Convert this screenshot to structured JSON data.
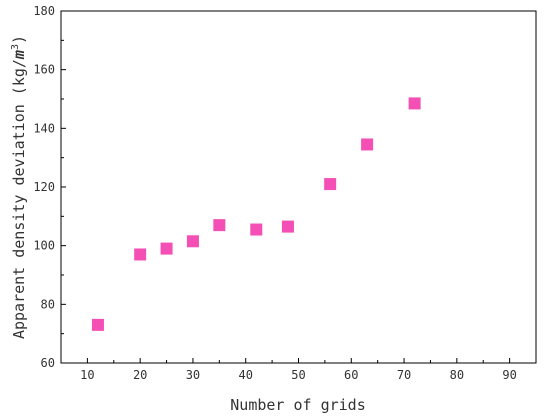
{
  "chart_data": {
    "type": "scatter",
    "title": "",
    "xlabel": "Number of grids",
    "ylabel_prefix": "Apparent density deviation (kg/",
    "ylabel_unit": "m",
    "ylabel_exp": "3",
    "ylabel_suffix": ")",
    "xlim": [
      5,
      95
    ],
    "ylim": [
      60,
      180
    ],
    "xticks": [
      10,
      20,
      30,
      40,
      50,
      60,
      70,
      80,
      90
    ],
    "yticks": [
      60,
      80,
      100,
      120,
      140,
      160,
      180
    ],
    "grid": false,
    "marker": "square",
    "marker_color": "#f44fb4",
    "series": [
      {
        "x": [
          12,
          20,
          25,
          30,
          35,
          42,
          48,
          56,
          63,
          72
        ],
        "y": [
          73,
          97,
          99,
          101.5,
          107,
          105.5,
          106.5,
          121,
          134.5,
          148.5
        ]
      }
    ]
  }
}
